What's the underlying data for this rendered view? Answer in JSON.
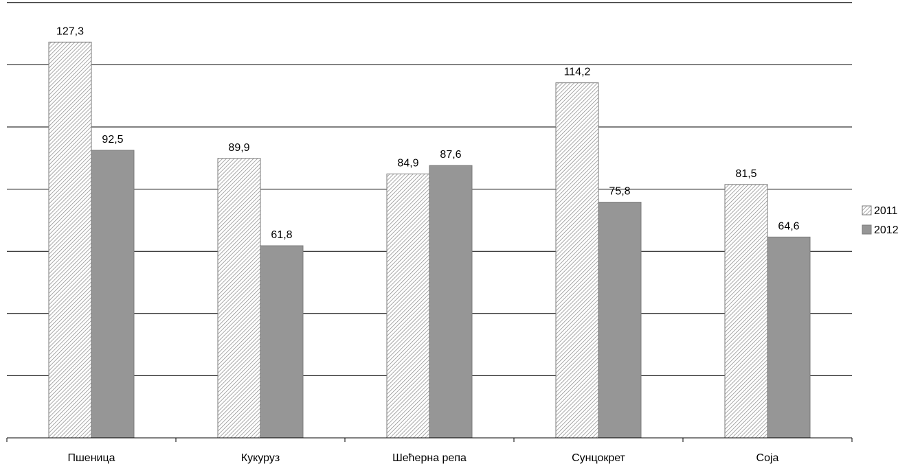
{
  "chart_data": {
    "type": "bar",
    "categories": [
      "Пшеница",
      "Кукуруз",
      "Шећерна репа",
      "Сунцокрет",
      "Соја"
    ],
    "series": [
      {
        "name": "2011",
        "values": [
          127.3,
          89.9,
          84.9,
          114.2,
          81.5
        ],
        "labels": [
          "127,3",
          "89,9",
          "84,9",
          "114,2",
          "81,5"
        ],
        "fill": "hatched",
        "color": "#8c8c8c"
      },
      {
        "name": "2012",
        "values": [
          92.5,
          61.8,
          87.6,
          75.8,
          64.6
        ],
        "labels": [
          "92,5",
          "61,8",
          "87,6",
          "75,8",
          "64,6"
        ],
        "fill": "solid",
        "color": "#969696"
      }
    ],
    "title": "",
    "xlabel": "",
    "ylabel": "",
    "ylim": [
      0,
      140
    ],
    "gridlines": true,
    "legend": "right"
  }
}
